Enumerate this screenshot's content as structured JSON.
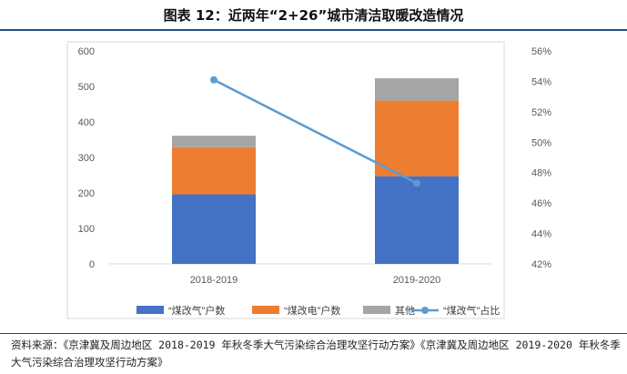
{
  "figure": {
    "title": "图表 12：近两年“2+26”城市清洁取暖改造情况",
    "source": "资料来源：《京津冀及周边地区 2018-2019 年秋冬季大气污染综合治理攻坚行动方案》《京津冀及周边地区 2019-2020 年秋冬季大气污染综合治理攻坚行动方案》"
  },
  "chart_data": {
    "type": "bar",
    "stacked": true,
    "categories": [
      "2018-2019",
      "2019-2020"
    ],
    "series": [
      {
        "name": "“煤改气”户数",
        "values": [
          196,
          247
        ],
        "color": "#4472c4",
        "axis": "left"
      },
      {
        "name": "“煤改电”户数",
        "values": [
          133,
          213
        ],
        "color": "#ed7d31",
        "axis": "left"
      },
      {
        "name": "其他",
        "values": [
          32,
          63
        ],
        "color": "#a5a5a5",
        "axis": "left"
      }
    ],
    "line_series": [
      {
        "name": "“煤改气”占比",
        "values": [
          54.1,
          47.3
        ],
        "color": "#5b9bd5",
        "axis": "right"
      }
    ],
    "ylim": [
      0,
      600
    ],
    "yticks": [
      "0",
      "100",
      "200",
      "300",
      "400",
      "500",
      "600"
    ],
    "y2lim": [
      42,
      56
    ],
    "y2ticks": [
      "42%",
      "44%",
      "46%",
      "48%",
      "50%",
      "52%",
      "54%",
      "56%"
    ],
    "grid": false,
    "legend": "bottom"
  }
}
